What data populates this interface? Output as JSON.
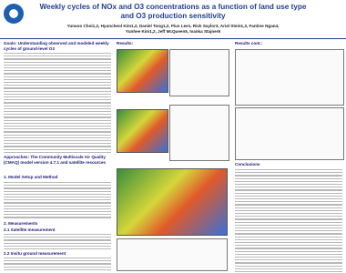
{
  "header": {
    "title": "Weekly cycles of NOx and O3 concentrations as a function of land use type and O3 production sensitivity",
    "authors": "Yunsoo Choi1,2, Hyuncheol Kim1,2, Daniel Tong1,2, Pius Lee1, Rick Saylor3, Ariel Stein1,3, Fantine Ngan4, Yunhee Kim1,2, Jeff McQueen5, Ivanka Stajner6"
  },
  "left": {
    "goals": "Goals: Understanding observed and modeled weekly cycles of ground-level O3",
    "approaches": "Approaches: The Community Multiscale Air Quality (CMAQ) model version 4.7.1 and satellite resources",
    "setup": "1. Model Setup and Method",
    "measurements": "2. Measurements",
    "satellite": "2.1 Satellite measurement",
    "insitu": "2.2 Insitu ground measurement"
  },
  "middle": {
    "results": "Results:"
  },
  "right": {
    "results_cont": "Results cont.:",
    "conclusions": "Conclusions"
  }
}
